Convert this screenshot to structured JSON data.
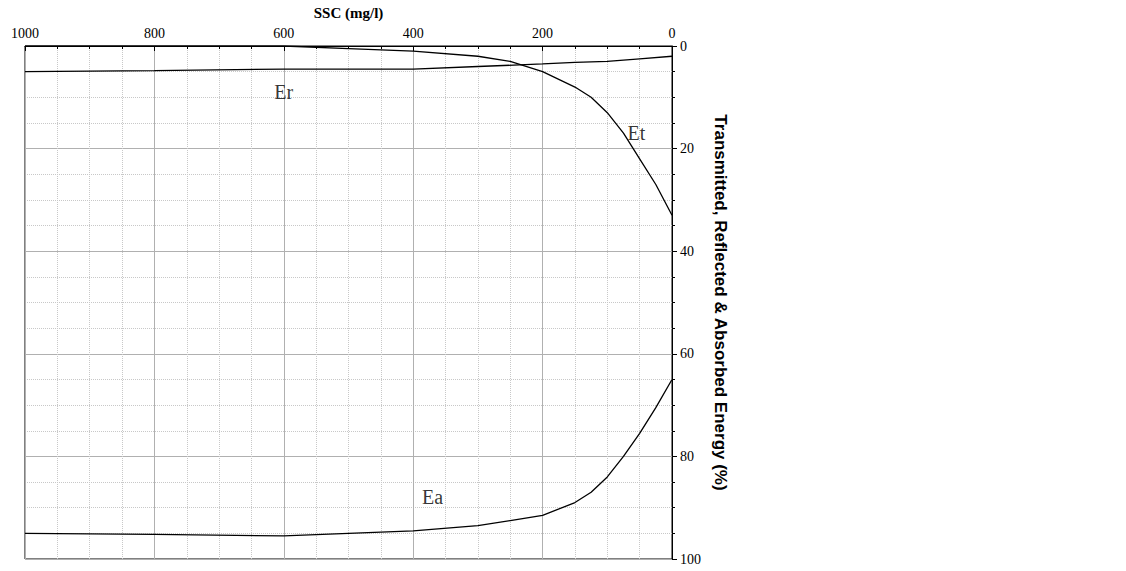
{
  "chart_data": {
    "type": "line",
    "x_label": "SSC (mg/l)",
    "y_label": "Transmitted, Reflected & Absorbed Energy (%)",
    "xlim": [
      0,
      1000
    ],
    "xticks": [
      0,
      200,
      400,
      600,
      800,
      1000
    ],
    "ylim": [
      0,
      100
    ],
    "yticks": [
      0,
      20,
      40,
      60,
      80,
      100
    ],
    "grid": true,
    "tick_labels": true,
    "series": [
      {
        "name": "Er",
        "color": "#000000",
        "line_style": "solid",
        "x": [
          0,
          50,
          100,
          150,
          200,
          300,
          400,
          500,
          600,
          800,
          1000
        ],
        "values": [
          2,
          2.5,
          3,
          3.2,
          3.5,
          4,
          4.5,
          4.5,
          4.5,
          4.8,
          5
        ]
      },
      {
        "name": "Et",
        "color": "#000000",
        "line_style": "solid",
        "x": [
          0,
          25,
          50,
          75,
          100,
          125,
          150,
          200,
          250,
          300,
          400,
          500,
          600,
          800,
          1000
        ],
        "values": [
          33,
          27,
          22,
          17,
          13,
          10,
          8,
          5,
          3,
          2,
          1,
          0.5,
          0,
          0,
          0
        ]
      },
      {
        "name": "Ea",
        "color": "#000000",
        "line_style": "solid",
        "x": [
          0,
          25,
          50,
          75,
          100,
          125,
          150,
          200,
          250,
          300,
          400,
          500,
          600,
          800,
          1000
        ],
        "values": [
          65,
          70.5,
          75.5,
          80,
          84,
          87,
          89,
          91.5,
          92.5,
          93.5,
          94.5,
          95,
          95.5,
          95.2,
          95
        ]
      }
    ],
    "annotations": [
      {
        "text": "Er",
        "x": 600,
        "y": 9
      },
      {
        "text": "Et",
        "x": 55,
        "y": 17
      },
      {
        "text": "Ea",
        "x": 370,
        "y": 88
      }
    ]
  }
}
